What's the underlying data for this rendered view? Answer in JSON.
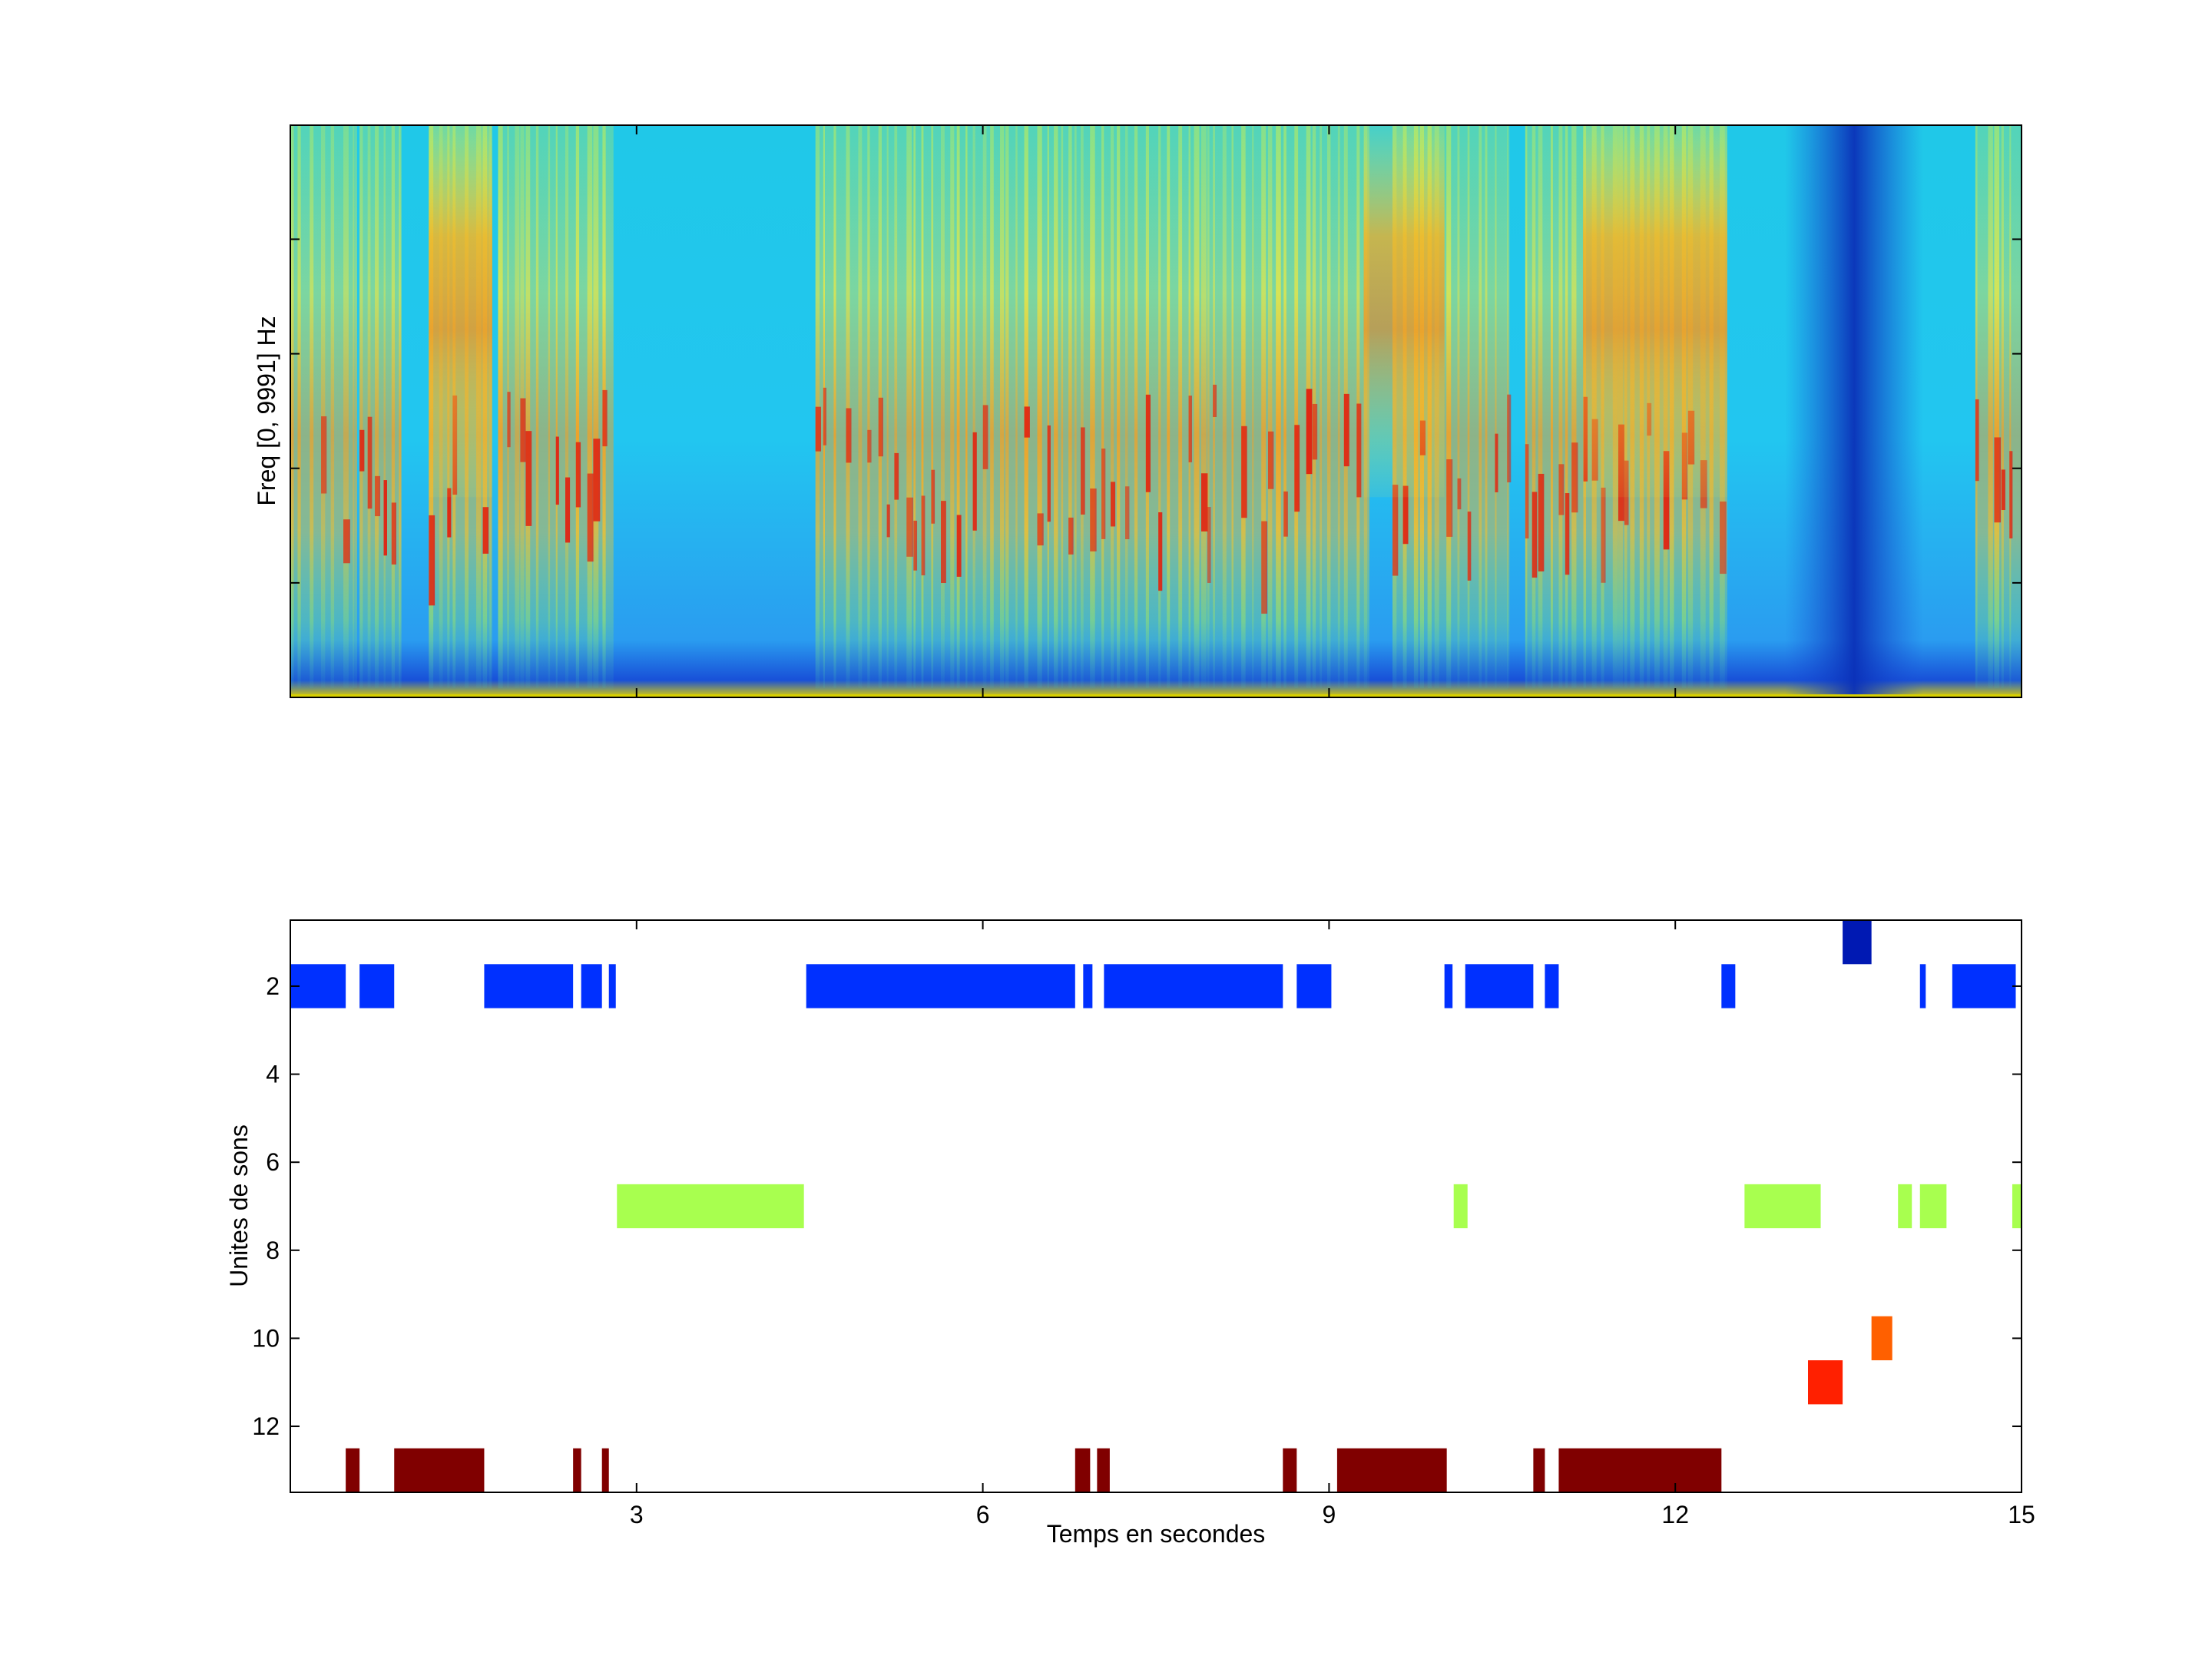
{
  "chart_data": [
    {
      "type": "heatmap",
      "subtype": "spectrogram",
      "ylabel": "Freq [0, 9991] Hz",
      "xlabel": "",
      "xlim": [
        0,
        15
      ],
      "ylim": [
        0,
        9991
      ],
      "colormap": "jet",
      "grid": false,
      "voiced_segments_s": [
        [
          0.0,
          0.55
        ],
        [
          0.6,
          0.95
        ],
        [
          1.2,
          1.75
        ],
        [
          1.8,
          2.8
        ],
        [
          4.55,
          9.35
        ],
        [
          9.55,
          10.55
        ],
        [
          10.7,
          12.45
        ],
        [
          14.6,
          15.0
        ]
      ],
      "harmonic_segments_s": [
        [
          1.2,
          1.75
        ],
        [
          9.3,
          10.0
        ],
        [
          11.2,
          12.45
        ]
      ],
      "low_energy_column_s": 13.55
    },
    {
      "type": "bar",
      "subtype": "timeline",
      "xlabel": "Temps en secondes",
      "ylabel": "Unites de sons",
      "xlim": [
        0,
        15
      ],
      "ylim": [
        0.5,
        13.5
      ],
      "y_reversed": true,
      "grid": false,
      "xticks": [
        "3",
        "6",
        "9",
        "12",
        "15"
      ],
      "xtick_values": [
        3,
        6,
        9,
        12,
        15
      ],
      "yticks": [
        "2",
        "4",
        "6",
        "8",
        "10",
        "12"
      ],
      "ytick_values": [
        2,
        4,
        6,
        8,
        10,
        12
      ],
      "series": [
        {
          "unit": 1,
          "color": "#0019b3",
          "segments": [
            [
              13.45,
              13.7
            ]
          ]
        },
        {
          "unit": 2,
          "color": "#0030ff",
          "segments": [
            [
              0.0,
              0.48
            ],
            [
              0.6,
              0.9
            ],
            [
              1.68,
              2.45
            ],
            [
              2.52,
              2.7
            ],
            [
              2.76,
              2.82
            ],
            [
              4.47,
              6.8
            ],
            [
              6.87,
              6.95
            ],
            [
              7.05,
              8.6
            ],
            [
              8.72,
              9.02
            ],
            [
              10.0,
              10.07
            ],
            [
              10.18,
              10.77
            ],
            [
              10.87,
              10.99
            ],
            [
              12.4,
              12.52
            ],
            [
              14.12,
              14.17
            ],
            [
              14.4,
              14.95
            ]
          ]
        },
        {
          "unit": 7,
          "color": "#a8ff4f",
          "segments": [
            [
              2.83,
              4.45
            ],
            [
              10.08,
              10.2
            ],
            [
              12.6,
              13.26
            ],
            [
              13.93,
              14.05
            ],
            [
              14.12,
              14.35
            ],
            [
              14.92,
              15.0
            ]
          ]
        },
        {
          "unit": 10,
          "color": "#ff6000",
          "segments": [
            [
              13.7,
              13.88
            ]
          ]
        },
        {
          "unit": 11,
          "color": "#ff2000",
          "segments": [
            [
              13.15,
              13.45
            ]
          ]
        },
        {
          "unit": 13,
          "color": "#800000",
          "segments": [
            [
              0.48,
              0.6
            ],
            [
              0.9,
              1.68
            ],
            [
              2.45,
              2.52
            ],
            [
              2.7,
              2.76
            ],
            [
              6.8,
              6.93
            ],
            [
              6.99,
              7.1
            ],
            [
              8.6,
              8.72
            ],
            [
              9.07,
              10.02
            ],
            [
              10.77,
              10.87
            ],
            [
              10.99,
              12.4
            ]
          ]
        }
      ]
    }
  ]
}
